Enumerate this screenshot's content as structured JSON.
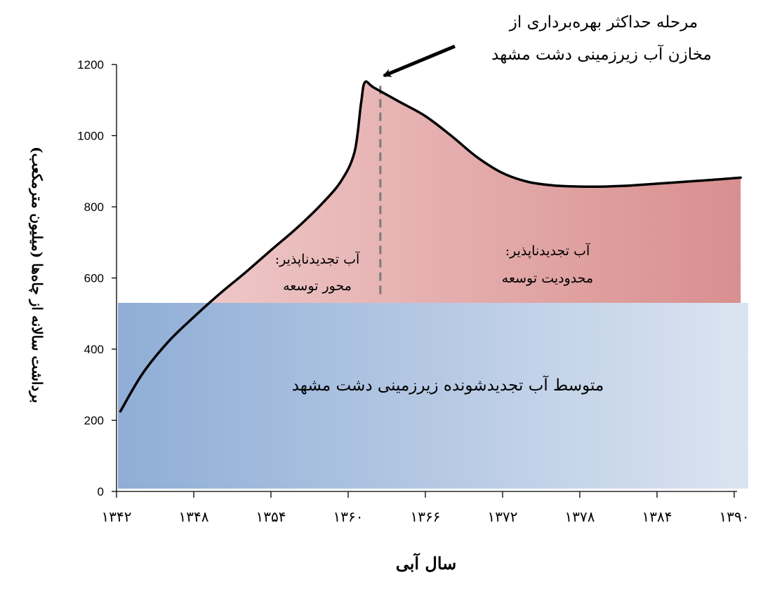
{
  "chart_data": {
    "type": "area",
    "xlabel": "سال آبی",
    "ylabel": "برداشت سالانه از چاه‌ها (میلیون مترمکعب)",
    "x_tick_labels": [
      "۱۳۴۲",
      "۱۳۴۸",
      "۱۳۵۴",
      "۱۳۶۰",
      "۱۳۶۶",
      "۱۳۷۲",
      "۱۳۷۸",
      "۱۳۸۴",
      "۱۳۹۰"
    ],
    "x_ticks": [
      1342,
      1348,
      1354,
      1360,
      1366,
      1372,
      1378,
      1384,
      1390
    ],
    "xlim": [
      1342,
      1390
    ],
    "y_tick_labels": [
      "0",
      "200",
      "400",
      "600",
      "800",
      "1000",
      "1200"
    ],
    "y_ticks": [
      0,
      200,
      400,
      600,
      800,
      1000,
      1200
    ],
    "ylim": [
      0,
      1200
    ],
    "grid": false,
    "series": [
      {
        "x": [
          1342.3,
          1344,
          1346,
          1348,
          1350,
          1352,
          1354,
          1356,
          1358,
          1359.5,
          1360.5,
          1361.0,
          1361.3,
          1362,
          1364,
          1366,
          1368,
          1370,
          1372,
          1374,
          1376,
          1378,
          1380,
          1382,
          1384,
          1386,
          1388,
          1390.5
        ],
        "values": [
          225,
          330,
          420,
          490,
          555,
          615,
          678,
          740,
          810,
          875,
          955,
          1090,
          1150,
          1135,
          1095,
          1055,
          1000,
          940,
          895,
          870,
          860,
          857,
          857,
          860,
          865,
          870,
          875,
          882
        ]
      }
    ],
    "renewable_average": 530,
    "peak_year": 1362.5,
    "colors": {
      "line": "#000000",
      "blue_region": "#8fadd6",
      "blue_region_light": "#dbe4f1",
      "red_region_light": "#f2d0d0",
      "red_region": "#d98f8f",
      "arrow": "#000000",
      "dashed_line": "#7a7a7a"
    },
    "annotations": {
      "callout": [
        "مرحله حداکثر بهره‌برداری از",
        "مخازن آب زیرزمینی دشت مشهد"
      ],
      "left_region": [
        "آب تجدیدناپذیر:",
        "محور توسعه"
      ],
      "right_region": [
        "آب تجدیدناپذیر:",
        "محدودیت توسعه"
      ],
      "average": "متوسط آب تجدیدشونده زیرزمینی دشت مشهد"
    }
  }
}
